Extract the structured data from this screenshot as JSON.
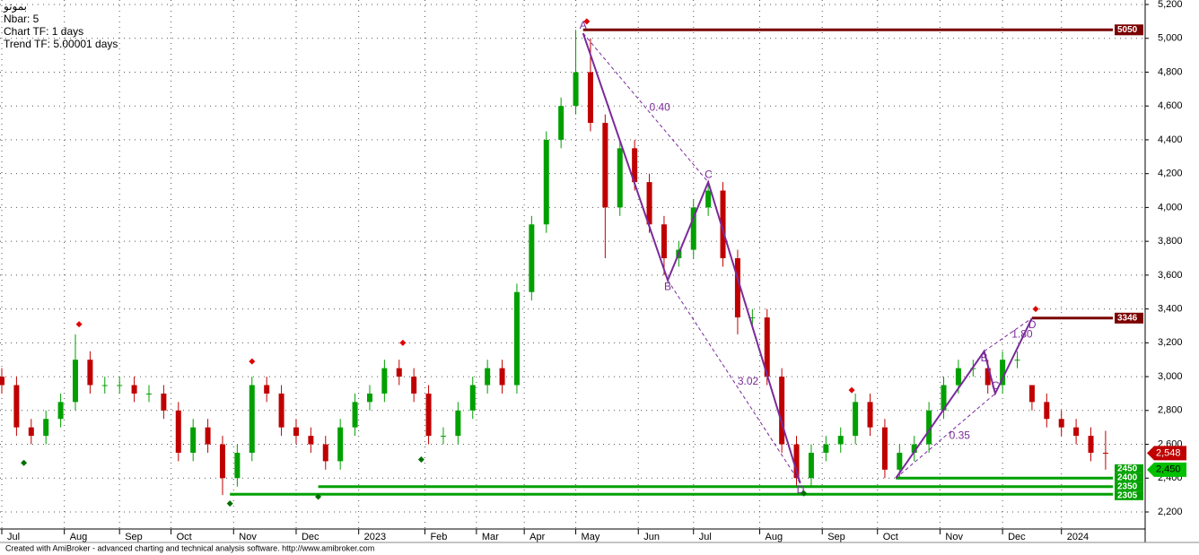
{
  "chart_data": {
    "type": "candlestick",
    "info": [
      "بموتو",
      "Nbar: 5",
      "Chart TF: 1 days",
      "Trend TF: 5.00001 days"
    ],
    "footer": "Created with AmiBroker - advanced charting and technical analysis software. http://www.amibroker.com",
    "x": [
      0,
      4,
      8,
      12,
      16,
      20,
      24,
      28,
      32,
      36,
      40,
      44,
      48,
      52,
      56,
      60,
      64,
      68,
      72,
      76,
      80,
      84,
      88,
      92,
      96,
      100,
      104,
      108,
      112,
      116,
      120,
      124,
      128,
      132,
      136,
      140,
      144,
      148,
      152,
      156,
      160,
      164,
      168,
      172,
      176,
      180,
      184,
      188,
      192,
      196,
      200,
      204,
      208,
      212,
      216,
      220,
      224,
      228,
      232,
      236,
      240,
      244,
      248,
      252,
      256,
      260,
      264,
      268,
      272,
      276,
      280,
      284,
      288,
      292,
      296,
      300
    ],
    "open": [
      3000,
      2950,
      2700,
      2650,
      2750,
      2850,
      3100,
      2950,
      2950,
      2950,
      2900,
      2900,
      2800,
      2550,
      2700,
      2600,
      2400,
      2550,
      2950,
      2900,
      2700,
      2650,
      2600,
      2500,
      2700,
      2850,
      2900,
      3050,
      3000,
      2900,
      2650,
      2650,
      2800,
      2950,
      3050,
      2950,
      3500,
      3900,
      4400,
      4600,
      4800,
      4500,
      4000,
      4350,
      4150,
      3900,
      3700,
      3750,
      4000,
      4100,
      3700,
      3350,
      3350,
      3000,
      2600,
      2400,
      2550,
      2600,
      2650,
      2850,
      2700,
      2450,
      2550,
      2600,
      2800,
      2950,
      3050,
      3050,
      2950,
      3100,
      2950,
      2850,
      2750,
      2700,
      2650,
      2550
    ],
    "high": [
      3050,
      3000,
      2750,
      2800,
      2900,
      3250,
      3150,
      3000,
      3000,
      3000,
      2950,
      2950,
      2850,
      2750,
      2750,
      2650,
      2600,
      3000,
      3000,
      2950,
      2750,
      2700,
      2650,
      2750,
      2900,
      2950,
      3100,
      3100,
      3050,
      2950,
      2700,
      2850,
      3000,
      3100,
      3100,
      3550,
      3950,
      4450,
      4650,
      5050,
      5000,
      4550,
      4400,
      4400,
      4200,
      3950,
      3800,
      4050,
      4150,
      4150,
      3750,
      3400,
      3400,
      3050,
      2650,
      2600,
      2650,
      2700,
      2900,
      2900,
      2750,
      2600,
      2650,
      2850,
      3000,
      3100,
      3100,
      3100,
      3150,
      3150,
      2950,
      2900,
      2800,
      2750,
      2700,
      2680
    ],
    "low": [
      2900,
      2650,
      2600,
      2600,
      2700,
      2800,
      2900,
      2900,
      2900,
      2850,
      2850,
      2750,
      2500,
      2500,
      2550,
      2300,
      2350,
      2500,
      2850,
      2650,
      2600,
      2550,
      2450,
      2450,
      2650,
      2800,
      2850,
      2950,
      2850,
      2600,
      2600,
      2600,
      2750,
      2900,
      2900,
      2900,
      3450,
      3850,
      4350,
      4550,
      4450,
      3700,
      3950,
      4100,
      3850,
      3600,
      3650,
      3700,
      3950,
      3650,
      3250,
      3300,
      2950,
      2550,
      2350,
      2350,
      2500,
      2550,
      2600,
      2650,
      2400,
      2400,
      2500,
      2550,
      2750,
      2900,
      3000,
      2900,
      2900,
      3050,
      2800,
      2700,
      2650,
      2600,
      2500,
      2450
    ],
    "close": [
      2950,
      2700,
      2650,
      2750,
      2850,
      3100,
      2950,
      2950,
      2950,
      2900,
      2900,
      2800,
      2550,
      2700,
      2600,
      2400,
      2550,
      2950,
      2900,
      2700,
      2650,
      2600,
      2500,
      2700,
      2850,
      2900,
      3050,
      3000,
      2900,
      2650,
      2650,
      2800,
      2950,
      3050,
      2950,
      3500,
      3900,
      4400,
      4600,
      4800,
      4500,
      4000,
      4350,
      4150,
      3900,
      3700,
      3750,
      4000,
      4100,
      3700,
      3350,
      3350,
      3000,
      2600,
      2400,
      2550,
      2600,
      2650,
      2850,
      2700,
      2450,
      2550,
      2600,
      2800,
      2950,
      3050,
      3050,
      2950,
      3100,
      3100,
      2850,
      2750,
      2700,
      2650,
      2550,
      2548
    ],
    "up_color": "#00a000",
    "down_color": "#c00000",
    "xlim": [
      0,
      311
    ],
    "xticks": [
      {
        "value": 0,
        "label": "Jul"
      },
      {
        "value": 17,
        "label": "Aug"
      },
      {
        "value": 32,
        "label": "Sep"
      },
      {
        "value": 46,
        "label": "Oct"
      },
      {
        "value": 63,
        "label": "Nov"
      },
      {
        "value": 80,
        "label": "Dec"
      },
      {
        "value": 97,
        "label": "2023"
      },
      {
        "value": 115,
        "label": "Feb"
      },
      {
        "value": 129,
        "label": "Mar"
      },
      {
        "value": 142,
        "label": "Apr"
      },
      {
        "value": 156,
        "label": "May"
      },
      {
        "value": 173,
        "label": "Jun"
      },
      {
        "value": 188,
        "label": "Jul"
      },
      {
        "value": 206,
        "label": "Aug"
      },
      {
        "value": 223,
        "label": "Sep"
      },
      {
        "value": 238,
        "label": "Oct"
      },
      {
        "value": 255,
        "label": "Nov"
      },
      {
        "value": 272,
        "label": "Dec"
      },
      {
        "value": 288,
        "label": "2024"
      }
    ],
    "ylim": [
      2200,
      5200
    ],
    "yticks": [
      {
        "value": 2200,
        "label": "2,200"
      },
      {
        "value": 2400,
        "label": "2,400"
      },
      {
        "value": 2600,
        "label": "2,600"
      },
      {
        "value": 2800,
        "label": "2,800"
      },
      {
        "value": 3000,
        "label": "3,000"
      },
      {
        "value": 3200,
        "label": "3,200"
      },
      {
        "value": 3400,
        "label": "3,400"
      },
      {
        "value": 3600,
        "label": "3,600"
      },
      {
        "value": 3800,
        "label": "3,800"
      },
      {
        "value": 4000,
        "label": "4,000"
      },
      {
        "value": 4200,
        "label": "4,200"
      },
      {
        "value": 4400,
        "label": "4,400"
      },
      {
        "value": 4600,
        "label": "4,600"
      },
      {
        "value": 4800,
        "label": "4,800"
      },
      {
        "value": 5000,
        "label": "5,000"
      },
      {
        "value": 5200,
        "label": "5,200"
      }
    ],
    "grid": true,
    "levels": [
      {
        "value": 5050,
        "label": "5050",
        "color": "#7b0000",
        "start": 158
      },
      {
        "value": 3346,
        "label": "3346",
        "color": "#7b0000",
        "start": 280
      },
      {
        "value": 2450,
        "label": "2450",
        "color": "#00a000"
      },
      {
        "value": 2400,
        "label": "2400",
        "color": "#00a000",
        "start": 243
      },
      {
        "value": 2350,
        "label": "2350",
        "color": "#00a000",
        "start": 86
      },
      {
        "value": 2305,
        "label": "2305",
        "color": "#00a000",
        "start": 62
      }
    ],
    "price_markers": [
      {
        "value": 2548,
        "label": "2,548",
        "color": "#c00000"
      },
      {
        "value": 2450,
        "label": "2,450",
        "color": "#00c000"
      }
    ],
    "patterns": [
      {
        "x": [
          158,
          181,
          192,
          217
        ],
        "values": [
          5030,
          3570,
          4150,
          2370
        ],
        "labels": [
          "A",
          "B",
          "C",
          "D"
        ],
        "ratios": [
          "0.40",
          "3.02"
        ],
        "color": "#7a2a9a"
      },
      {
        "x": [
          243,
          267,
          270,
          280
        ],
        "values": [
          2400,
          3150,
          2900,
          3346
        ],
        "labels": [
          null,
          "B",
          "C",
          "D"
        ],
        "ratios": [
          "0.35",
          "1.80"
        ],
        "color": "#7a2a9a"
      }
    ],
    "swing_highs": {
      "x": [
        21,
        68,
        109,
        159,
        231,
        281
      ],
      "values": [
        3310,
        3090,
        3200,
        5100,
        2920,
        3400
      ],
      "color": "#e00000"
    },
    "swing_lows": {
      "x": [
        6,
        62,
        86,
        114,
        218
      ],
      "values": [
        2490,
        2250,
        2290,
        2510,
        2310
      ],
      "color": "#007000"
    }
  }
}
